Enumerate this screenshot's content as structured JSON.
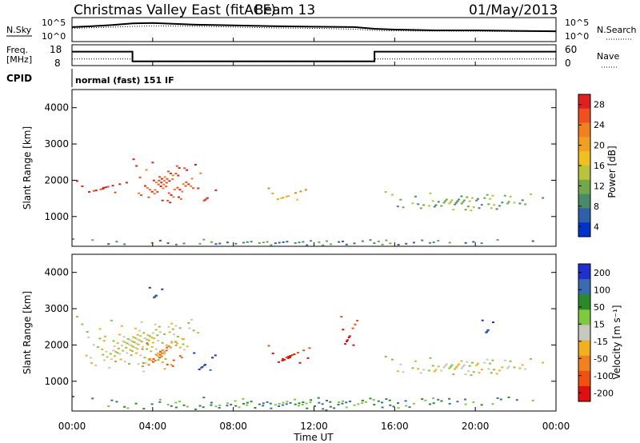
{
  "header": {
    "title": "Christmas Valley East (fitACF)",
    "beam": "Beam 13",
    "date": "01/May/2013"
  },
  "top_panels": {
    "nsky_label": "N.Sky",
    "nsearch_label": "N.Search",
    "noise_ticks": [
      "10^5",
      "10^0"
    ],
    "freq_label_1": "Freq.",
    "freq_label_2": "[MHz]",
    "freq_ticks": [
      "18",
      "8"
    ],
    "nave_label": "Nave",
    "nave_ticks": [
      "60",
      "0"
    ],
    "cpid_label": "CPID",
    "cpid_value": "normal (fast) 151 IF"
  },
  "axes": {
    "xlabel": "Time UT",
    "x_ticks": [
      "00:00",
      "04:00",
      "08:00",
      "12:00",
      "16:00",
      "20:00",
      "00:00"
    ],
    "ylabel_power": "Slant Range [km]",
    "ylabel_velocity": "Slant Range [km]",
    "y_ticks": [
      "1000",
      "2000",
      "3000",
      "4000"
    ]
  },
  "colorbars": {
    "power": {
      "label": "Power [dB]",
      "ticks": [
        "4",
        "8",
        "12",
        "16",
        "20",
        "24",
        "28"
      ],
      "colors": [
        "#0033cc",
        "#2e5fa8",
        "#4a8a6a",
        "#72a84a",
        "#b8c43c",
        "#f0c020",
        "#f0a020",
        "#f08020",
        "#f05020",
        "#e02020"
      ]
    },
    "velocity": {
      "label": "Velocity [m s⁻¹]",
      "ticks": [
        "200",
        "100",
        "50",
        "15",
        "-15",
        "-50",
        "-100",
        "-200"
      ],
      "colors": [
        "#2030d0",
        "#3a6ab0",
        "#2a8a2a",
        "#80c840",
        "#c8c8c0",
        "#f0b020",
        "#f08020",
        "#f05010",
        "#e01010"
      ]
    }
  },
  "chart_data": [
    {
      "type": "line",
      "panel": "noise",
      "series": [
        {
          "name": "N.Sky",
          "style": "solid",
          "x": [
            0,
            1,
            2,
            3,
            4,
            6,
            8,
            10,
            12,
            14,
            15,
            16,
            18,
            20,
            22,
            24
          ],
          "y_log10": [
            3.1,
            3.3,
            3.6,
            4.0,
            4.1,
            3.7,
            3.5,
            3.3,
            3.2,
            3.1,
            2.7,
            2.5,
            2.3,
            2.3,
            2.2,
            2.1
          ]
        },
        {
          "name": "N.Search",
          "style": "dotted",
          "x": [
            0,
            2,
            4,
            6,
            8,
            10,
            12,
            14,
            15,
            16,
            20,
            24
          ],
          "y_log10": [
            2.8,
            3.1,
            3.4,
            3.3,
            3.1,
            2.9,
            2.8,
            2.6,
            2.3,
            2.2,
            2.1,
            2.0
          ]
        }
      ],
      "ylim_log10": [
        0,
        5
      ],
      "xlim_hours": [
        0,
        24
      ]
    },
    {
      "type": "line",
      "panel": "frequency",
      "series": [
        {
          "name": "Freq.",
          "style": "solid",
          "x": [
            0,
            3,
            3,
            15,
            15,
            24
          ],
          "y_mhz": [
            15,
            15,
            9.5,
            9.5,
            15,
            15
          ]
        },
        {
          "name": "Nave",
          "style": "dotted",
          "x": [
            0,
            3,
            3,
            15,
            15,
            24
          ],
          "y_nave": [
            17,
            17,
            10,
            10,
            17,
            17
          ]
        }
      ],
      "ylim_mhz": [
        8,
        18
      ],
      "ylim_nave": [
        0,
        60
      ],
      "xlim_hours": [
        0,
        24
      ]
    },
    {
      "type": "heatmap",
      "panel": "power",
      "xlabel": "Time UT",
      "ylabel": "Slant Range [km]",
      "xlim_hours": [
        0,
        24
      ],
      "ylim_km": [
        180,
        4500
      ],
      "zlabel": "Power [dB]",
      "features": [
        {
          "desc": "band",
          "x": [
            0.2,
            3
          ],
          "y": [
            1600,
            2000
          ],
          "level": "28"
        },
        {
          "desc": "band",
          "x": [
            3,
            6.5
          ],
          "y": [
            1200,
            2600
          ],
          "level": "24"
        },
        {
          "desc": "patch",
          "x": [
            6.2,
            7.2
          ],
          "y": [
            1300,
            1800
          ],
          "level": "28"
        },
        {
          "desc": "patch",
          "x": [
            9.7,
            11.8
          ],
          "y": [
            1400,
            1800
          ],
          "level": "20"
        },
        {
          "desc": "arc",
          "x": [
            15.5,
            23.7
          ],
          "y": [
            1100,
            1700
          ],
          "level": "12"
        },
        {
          "desc": "ground",
          "x": [
            0,
            24
          ],
          "y": [
            200,
            400
          ],
          "level": "8"
        }
      ]
    },
    {
      "type": "heatmap",
      "panel": "velocity",
      "xlabel": "Time UT",
      "ylabel": "Slant Range [km]",
      "xlim_hours": [
        0,
        24
      ],
      "ylim_km": [
        180,
        4500
      ],
      "zlabel": "Velocity [m s⁻¹]",
      "features": [
        {
          "desc": "ground scatter",
          "x": [
            0.2,
            6.5
          ],
          "y": [
            1200,
            2800
          ],
          "level": "-15..15"
        },
        {
          "desc": "patch",
          "x": [
            3.2,
            5.8
          ],
          "y": [
            1200,
            2300
          ],
          "level": "-50"
        },
        {
          "desc": "patch",
          "x": [
            6.0,
            7.2
          ],
          "y": [
            1200,
            1800
          ],
          "level": "200"
        },
        {
          "desc": "patch",
          "x": [
            3.8,
            4.5
          ],
          "y": [
            3200,
            3600
          ],
          "level": "200"
        },
        {
          "desc": "patch",
          "x": [
            9.7,
            12.0
          ],
          "y": [
            1400,
            2000
          ],
          "level": "-200"
        },
        {
          "desc": "patch",
          "x": [
            13.3,
            14.2
          ],
          "y": [
            1800,
            2800
          ],
          "level": "-200"
        },
        {
          "desc": "arc",
          "x": [
            15.5,
            23.7
          ],
          "y": [
            1100,
            1700
          ],
          "level": "-15..15"
        },
        {
          "desc": "patch",
          "x": [
            20.3,
            20.9
          ],
          "y": [
            2200,
            2700
          ],
          "level": "200"
        },
        {
          "desc": "ground",
          "x": [
            0,
            24
          ],
          "y": [
            200,
            600
          ],
          "level": "50"
        }
      ]
    }
  ]
}
